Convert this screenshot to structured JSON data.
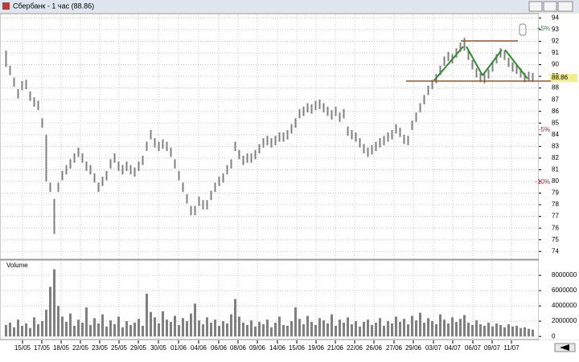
{
  "chart_data": {
    "type": "range-bar",
    "title": "Сбербанк - 1 час (88.86)",
    "last_price": 88.86,
    "annotations": [
      "+5%",
      "-5%",
      "-10%"
    ],
    "xlim": [
      -1.5,
      132.5
    ],
    "xticks": [
      {
        "value": 4.1,
        "label": "15/05"
      },
      {
        "value": 8.9,
        "label": "17/05"
      },
      {
        "value": 13.7,
        "label": "18/05"
      },
      {
        "value": 18.5,
        "label": "22/05"
      },
      {
        "value": 23.3,
        "label": "23/05"
      },
      {
        "value": 28.1,
        "label": "25/05"
      },
      {
        "value": 32.9,
        "label": "29/05"
      },
      {
        "value": 37.9,
        "label": "30/05"
      },
      {
        "value": 42.9,
        "label": "01/06"
      },
      {
        "value": 47.9,
        "label": "04/06"
      },
      {
        "value": 52.9,
        "label": "06/06"
      },
      {
        "value": 57.7,
        "label": "08/06"
      },
      {
        "value": 62.5,
        "label": "09/06"
      },
      {
        "value": 67.5,
        "label": "14/06"
      },
      {
        "value": 72.3,
        "label": "15/06"
      },
      {
        "value": 77.1,
        "label": "19/06"
      },
      {
        "value": 81.9,
        "label": "21/06"
      },
      {
        "value": 86.7,
        "label": "22/06"
      },
      {
        "value": 91.5,
        "label": "26/06"
      },
      {
        "value": 96.5,
        "label": "27/06"
      },
      {
        "value": 101.3,
        "label": "29/06"
      },
      {
        "value": 106.3,
        "label": "03/07"
      },
      {
        "value": 111.1,
        "label": "04/07"
      },
      {
        "value": 116.1,
        "label": "06/07"
      },
      {
        "value": 120.9,
        "label": "09/07"
      },
      {
        "value": 125.7,
        "label": "11/07"
      }
    ],
    "ylim": [
      73.4,
      94.3
    ],
    "yticks": [
      74,
      75,
      76,
      77,
      78,
      79,
      80,
      81,
      82,
      83,
      84,
      85,
      86,
      87,
      88,
      89,
      90,
      91,
      92,
      93,
      94
    ],
    "grid": true,
    "color": "#808080",
    "high": [
      91.2,
      89.9,
      88.9,
      87.9,
      88.6,
      88.7,
      87.7,
      87.2,
      86.9,
      85.4,
      84,
      79.9,
      78.5,
      79.9,
      80.9,
      81.4,
      81.9,
      82.4,
      82.9,
      82.4,
      81.7,
      81.4,
      80.7,
      79.9,
      80.4,
      80.9,
      81.9,
      82.4,
      81.7,
      81.4,
      81.7,
      81.4,
      81.2,
      81.7,
      82.2,
      83.4,
      84.4,
      83.7,
      83.4,
      83.6,
      83.4,
      82.9,
      81.9,
      80.9,
      79.9,
      78.9,
      77.9,
      77.9,
      78.7,
      78.4,
      78.4,
      79.2,
      79.9,
      80.4,
      80.7,
      81.4,
      81.9,
      83.4,
      82.7,
      82.2,
      82.4,
      82.4,
      82.7,
      83.2,
      83.7,
      83.9,
      83.7,
      83.9,
      84.2,
      84.2,
      84.4,
      84.9,
      85.4,
      86.2,
      86.4,
      86.7,
      86.6,
      86.9,
      87,
      86.7,
      86.4,
      86.1,
      86.4,
      85.9,
      86.2,
      84.7,
      84.4,
      84.2,
      83.7,
      83.2,
      82.9,
      83.1,
      83.4,
      83.7,
      83.9,
      84.2,
      84.4,
      84.9,
      84.6,
      84,
      83.9,
      85.2,
      85.9,
      86.7,
      87.4,
      88.2,
      88.7,
      89.2,
      89.9,
      90.7,
      91.1,
      90.9,
      91.4,
      91.9,
      92.3,
      91.2,
      90.4,
      89.7,
      89.3,
      89.2,
      89.6,
      90.2,
      90.9,
      91.4,
      91.2,
      90.6,
      90.2,
      90,
      89.7,
      89.3,
      89.4,
      89.3
    ],
    "low": [
      89.8,
      89.1,
      88.1,
      87.1,
      87.8,
      87.9,
      86.9,
      86.4,
      86.1,
      84.6,
      80,
      79.1,
      75.5,
      79.1,
      80.1,
      80.6,
      81.1,
      81.6,
      82.1,
      81.6,
      80.9,
      80.6,
      79.9,
      79.1,
      79.6,
      80.1,
      81.1,
      81.6,
      80.9,
      80.6,
      80.9,
      80.6,
      80.4,
      80.9,
      81.4,
      82.6,
      83.6,
      82.9,
      82.6,
      82.8,
      82.6,
      82.1,
      81.1,
      80.1,
      79.1,
      78.1,
      77.1,
      77.1,
      77.9,
      77.6,
      77.6,
      78.4,
      79.1,
      79.6,
      79.9,
      80.6,
      81.1,
      82.6,
      81.9,
      81.4,
      81.6,
      81.6,
      81.9,
      82.4,
      82.9,
      83.1,
      82.9,
      83.1,
      83.4,
      83.4,
      83.6,
      84.1,
      84.6,
      85.4,
      85.6,
      85.9,
      85.8,
      86.1,
      86.2,
      85.9,
      85.6,
      85.3,
      85.6,
      85.1,
      85.4,
      83.9,
      83.6,
      83.4,
      82.9,
      82.4,
      82.1,
      82.3,
      82.6,
      82.9,
      83.1,
      83.4,
      83.6,
      84.1,
      83.8,
      83.2,
      83.1,
      84.4,
      85.1,
      85.9,
      86.6,
      87.4,
      87.9,
      88.4,
      89.1,
      89.9,
      90.3,
      90.1,
      90.6,
      91.1,
      91.2,
      90.4,
      89.6,
      88.9,
      88.5,
      88.4,
      88.8,
      89.4,
      90.1,
      90.6,
      90.4,
      89.8,
      89.4,
      89.2,
      88.9,
      88.5,
      88.6,
      88.5
    ],
    "volume": {
      "label": "Volume",
      "ylim": [
        -300000,
        9900000
      ],
      "yticks": [
        0,
        2000000,
        4000000,
        6000000,
        8000000
      ],
      "color": "#808080",
      "values": [
        1500000,
        1800000,
        1200000,
        2200000,
        1400000,
        1700000,
        1100000,
        2500000,
        1600000,
        2000000,
        3500000,
        6500000,
        8800000,
        4000000,
        2600000,
        1900000,
        3000000,
        1400000,
        2200000,
        1800000,
        3800000,
        1500000,
        2400000,
        1700000,
        2900000,
        1300000,
        2100000,
        1600000,
        2600000,
        1200000,
        2000000,
        1500000,
        1800000,
        2300000,
        1400000,
        5600000,
        3200000,
        2500000,
        1700000,
        3300000,
        2200000,
        1900000,
        2700000,
        1500000,
        2400000,
        2000000,
        3000000,
        4300000,
        2100000,
        1600000,
        2500000,
        1800000,
        2200000,
        1400000,
        2000000,
        1700000,
        2900000,
        4900000,
        2600000,
        1800000,
        1500000,
        2100000,
        1300000,
        1900000,
        1600000,
        2200000,
        1200000,
        1800000,
        2600000,
        1500000,
        1400000,
        2000000,
        3800000,
        2300000,
        1600000,
        2700000,
        1900000,
        1500000,
        2400000,
        2100000,
        1700000,
        2900000,
        1400000,
        2200000,
        1800000,
        2500000,
        1600000,
        2000000,
        1300000,
        1900000,
        2200000,
        1500000,
        1800000,
        2400000,
        1400000,
        2000000,
        1700000,
        2600000,
        1900000,
        2300000,
        1600000,
        2700000,
        2100000,
        3100000,
        1800000,
        2400000,
        2000000,
        1600000,
        2900000,
        2200000,
        1700000,
        2500000,
        1900000,
        2300000,
        2800000,
        1800000,
        1500000,
        2100000,
        1600000,
        1400000,
        1800000,
        1300000,
        1700000,
        1500000,
        1200000,
        1600000,
        1300000,
        1400000,
        1100000,
        1200000,
        1000000,
        900000
      ]
    }
  }
}
